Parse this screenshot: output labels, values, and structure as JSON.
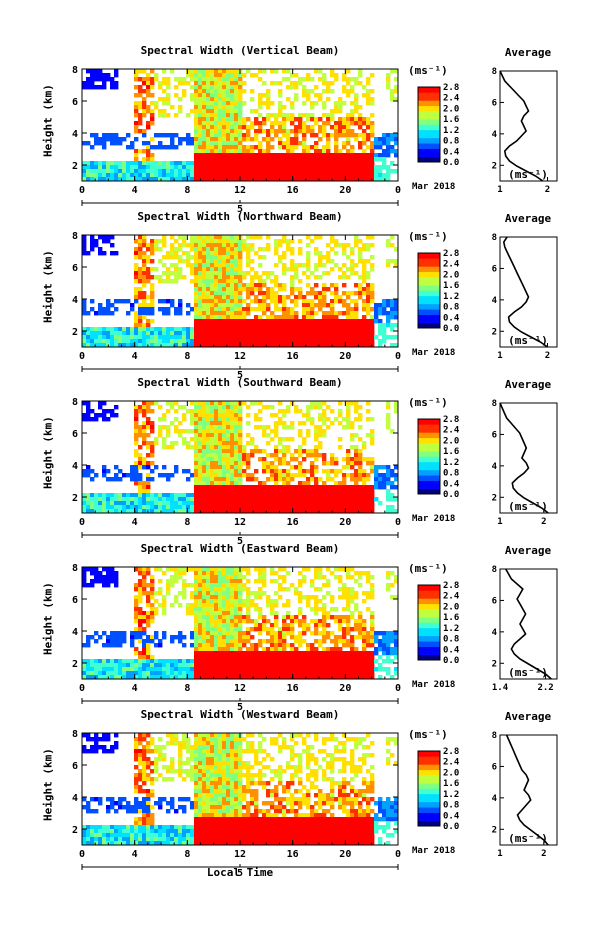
{
  "panels": [
    {
      "title": "Spectral Width (Vertical Beam)",
      "avg_xticks": [
        "1",
        "2"
      ],
      "avg_xlim": [
        1,
        2.2
      ],
      "profile": [
        1.9,
        1.75,
        1.55,
        1.35,
        1.2,
        1.12,
        1.1,
        1.2,
        1.35,
        1.45,
        1.55,
        1.5,
        1.45,
        1.5,
        1.6,
        1.55,
        1.5,
        1.4,
        1.3,
        1.2,
        1.1,
        1.05,
        1.0
      ]
    },
    {
      "title": "Spectral Width (Northward Beam)",
      "avg_xticks": [
        "1",
        "2"
      ],
      "avg_xlim": [
        1,
        2.2
      ],
      "profile": [
        2.0,
        1.85,
        1.65,
        1.45,
        1.3,
        1.2,
        1.18,
        1.3,
        1.45,
        1.55,
        1.6,
        1.55,
        1.5,
        1.45,
        1.4,
        1.35,
        1.3,
        1.25,
        1.2,
        1.15,
        1.1,
        1.08,
        1.15
      ]
    },
    {
      "title": "Spectral Width (Southward Beam)",
      "avg_xticks": [
        "1",
        "2"
      ],
      "avg_xlim": [
        1,
        2.3
      ],
      "profile": [
        2.1,
        1.95,
        1.75,
        1.55,
        1.4,
        1.3,
        1.28,
        1.4,
        1.55,
        1.65,
        1.6,
        1.5,
        1.55,
        1.6,
        1.55,
        1.5,
        1.45,
        1.35,
        1.25,
        1.15,
        1.1,
        1.05,
        1.0
      ]
    },
    {
      "title": "Spectral Width (Eastward Beam)",
      "avg_xticks": [
        "1.4",
        "2.2"
      ],
      "avg_xlim": [
        1.4,
        2.4
      ],
      "profile": [
        2.3,
        2.2,
        2.05,
        1.9,
        1.75,
        1.65,
        1.6,
        1.65,
        1.75,
        1.85,
        1.8,
        1.75,
        1.8,
        1.85,
        1.8,
        1.75,
        1.7,
        1.75,
        1.8,
        1.7,
        1.6,
        1.55,
        1.5
      ]
    },
    {
      "title": "Spectral Width (Westward Beam)",
      "avg_xticks": [
        "1",
        "2"
      ],
      "avg_xlim": [
        1,
        2.3
      ],
      "profile": [
        2.1,
        2.0,
        1.85,
        1.7,
        1.55,
        1.45,
        1.4,
        1.5,
        1.6,
        1.7,
        1.65,
        1.55,
        1.6,
        1.65,
        1.6,
        1.5,
        1.45,
        1.4,
        1.35,
        1.3,
        1.25,
        1.2,
        1.15
      ]
    }
  ],
  "ylabel": "Height (km)",
  "yticks": [
    "2",
    "4",
    "6",
    "8"
  ],
  "xticks": [
    "0",
    "4",
    "8",
    "12",
    "16",
    "20",
    "0"
  ],
  "day_label": "5",
  "month_label": "Mar 2018",
  "unit_label": "(ms⁻¹)",
  "avg_title": "Average",
  "avg_yticks": [
    "2",
    "4",
    "6",
    "8"
  ],
  "colorbar_ticks": [
    "0.0",
    "0.4",
    "0.8",
    "1.2",
    "1.6",
    "2.0",
    "2.4",
    "2.8"
  ],
  "xlabel": "Local Time",
  "colors": {
    "colormap": [
      "#000080",
      "#0000ff",
      "#0050ff",
      "#00a0ff",
      "#00e0ff",
      "#40ffd0",
      "#80ff80",
      "#c0ff40",
      "#ffe000",
      "#ff9000",
      "#ff3000",
      "#ff0000"
    ]
  },
  "chart_data": [
    {
      "type": "heatmap",
      "title": "Spectral Width (Vertical Beam)",
      "xlabel": "",
      "ylabel": "Height (km)",
      "xlim": [
        0,
        24
      ],
      "ylim": [
        1,
        8
      ],
      "zlim": [
        0,
        2.8
      ]
    },
    {
      "type": "heatmap",
      "title": "Spectral Width (Northward Beam)",
      "xlabel": "",
      "ylabel": "Height (km)",
      "xlim": [
        0,
        24
      ],
      "ylim": [
        1,
        8
      ],
      "zlim": [
        0,
        2.8
      ]
    },
    {
      "type": "heatmap",
      "title": "Spectral Width (Southward Beam)",
      "xlabel": "",
      "ylabel": "Height (km)",
      "xlim": [
        0,
        24
      ],
      "ylim": [
        1,
        8
      ],
      "zlim": [
        0,
        2.8
      ]
    },
    {
      "type": "heatmap",
      "title": "Spectral Width (Eastward Beam)",
      "xlabel": "",
      "ylabel": "Height (km)",
      "xlim": [
        0,
        24
      ],
      "ylim": [
        1,
        8
      ],
      "zlim": [
        0,
        2.8
      ]
    },
    {
      "type": "heatmap",
      "title": "Spectral Width (Westward Beam)",
      "xlabel": "Local Time",
      "ylabel": "Height (km)",
      "xlim": [
        0,
        24
      ],
      "ylim": [
        1,
        8
      ],
      "zlim": [
        0,
        2.8
      ]
    }
  ]
}
